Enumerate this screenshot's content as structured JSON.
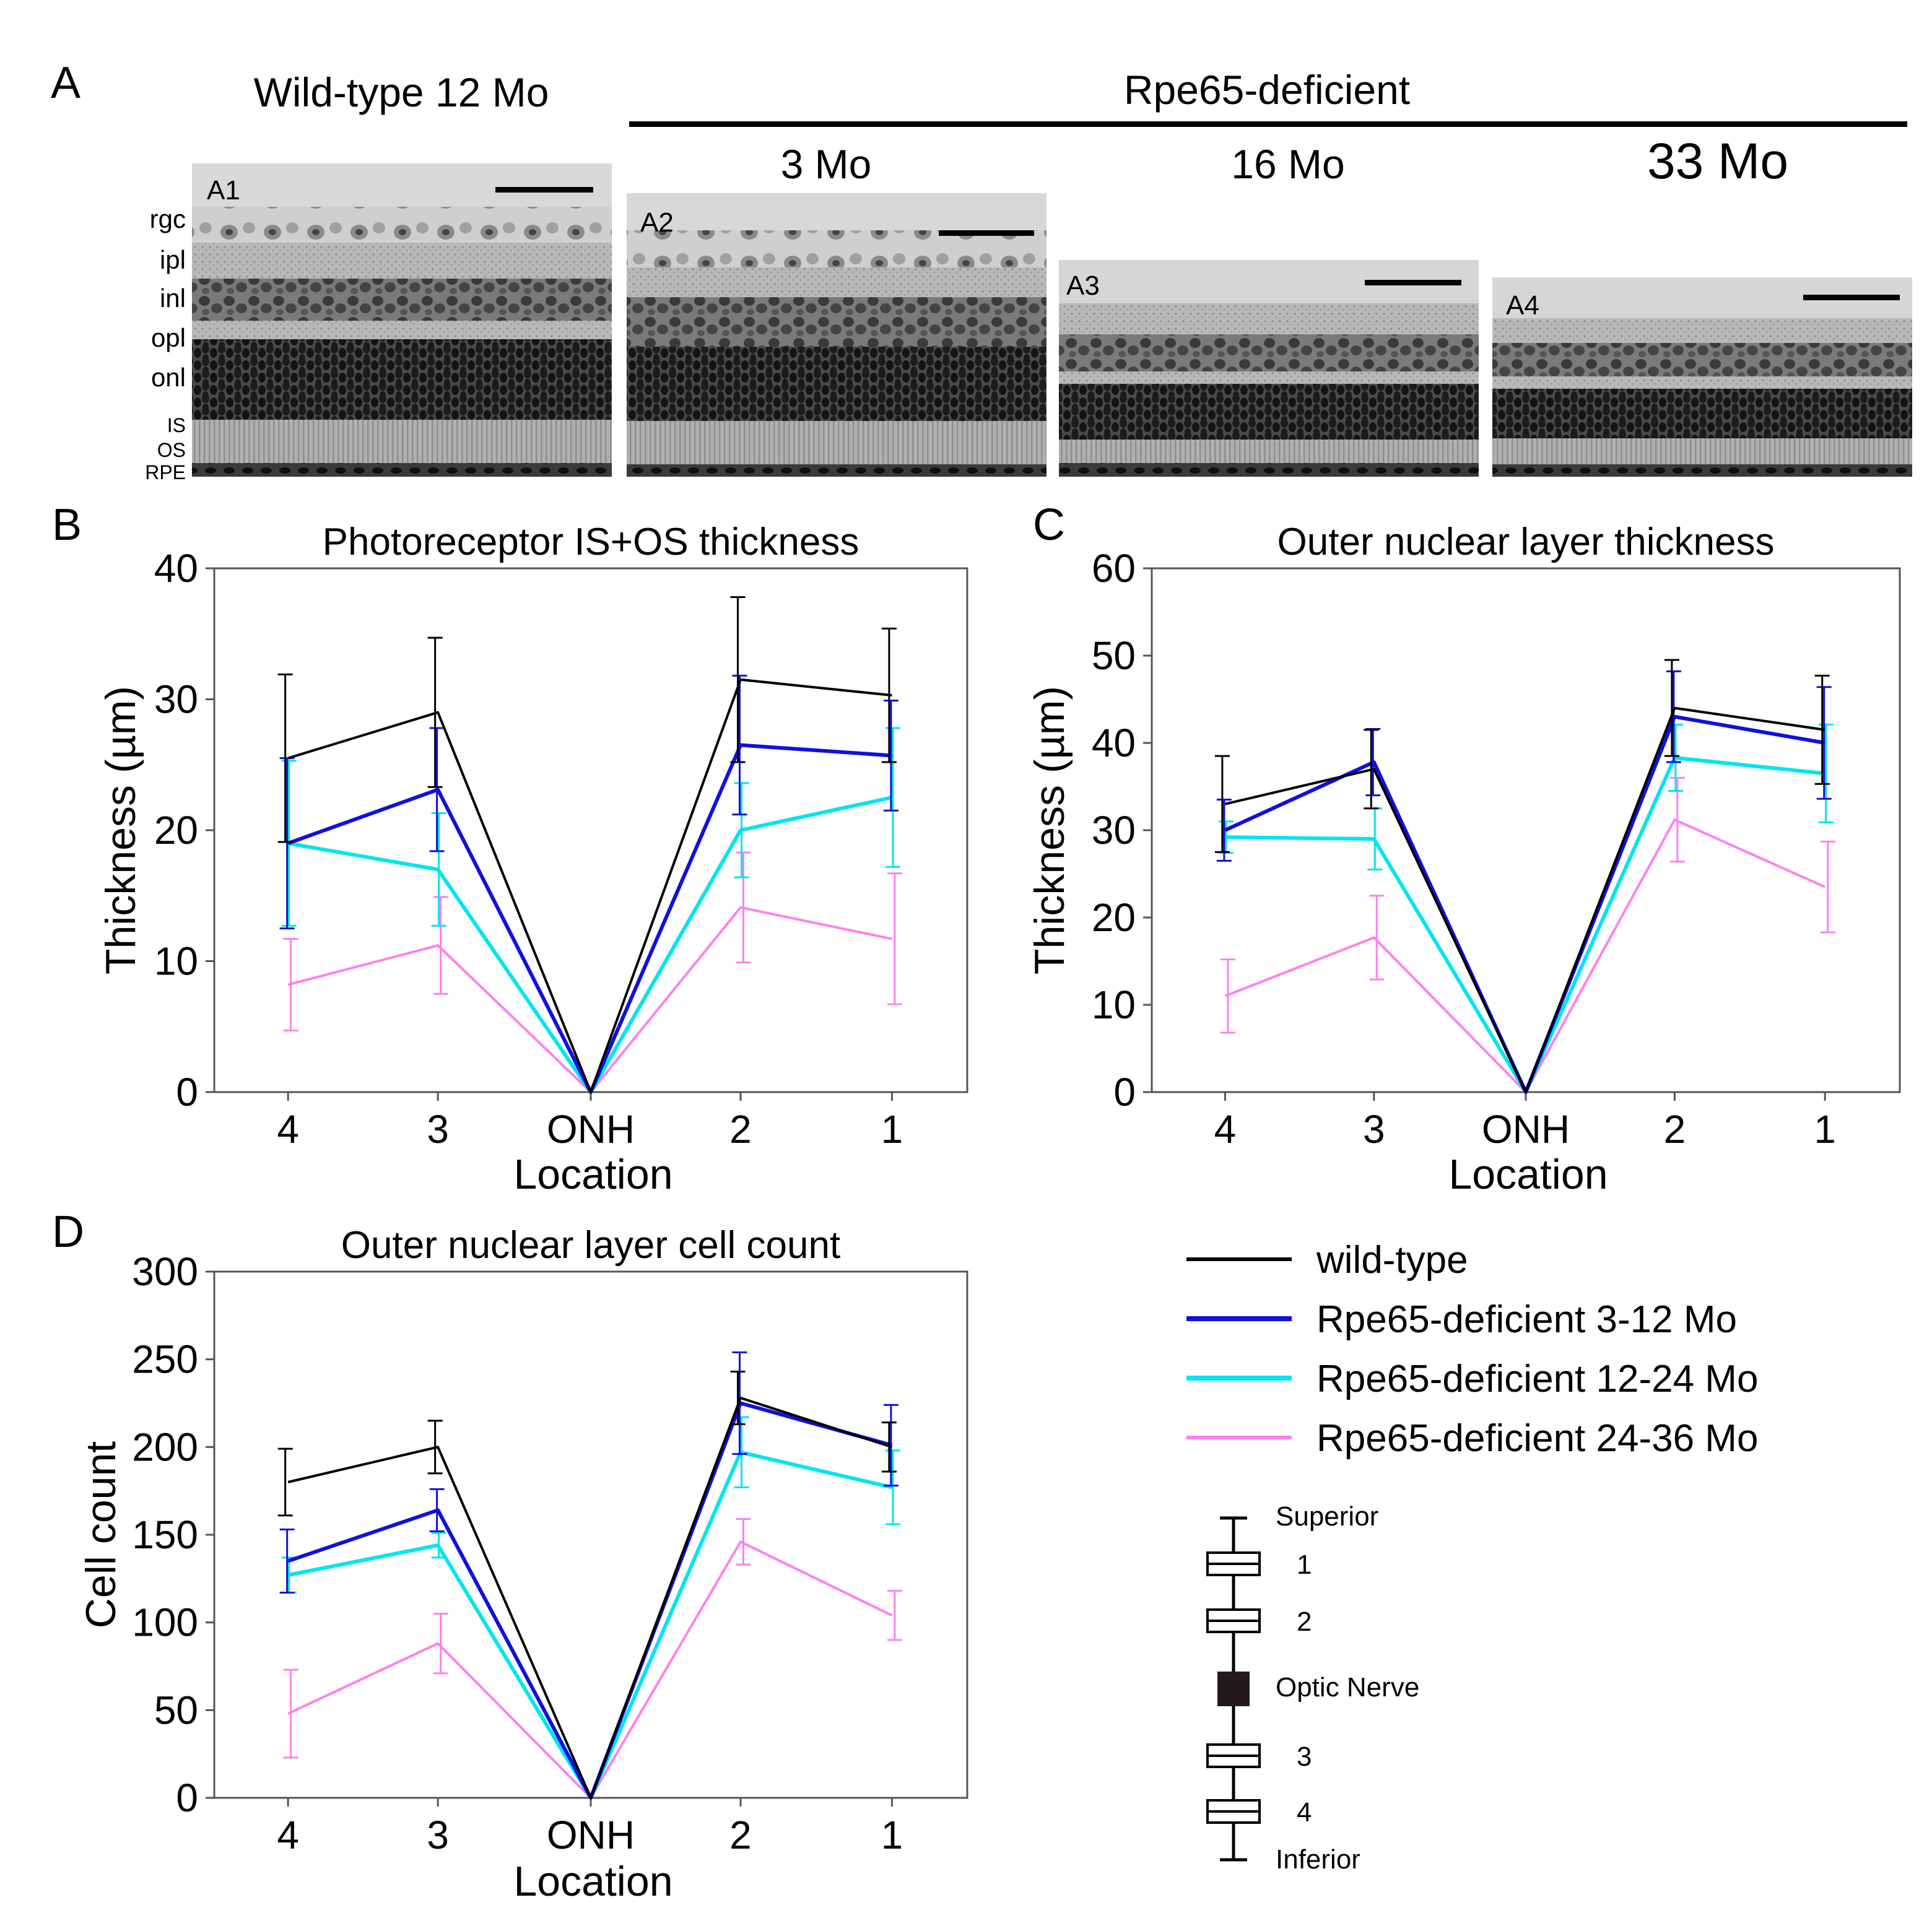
{
  "panel_a": {
    "letter": "A",
    "wild_type_header": "Wild-type 12 Mo",
    "rpe_header": "Rpe65-deficient",
    "ages": [
      "3 Mo",
      "16 Mo",
      "33 Mo"
    ],
    "micrograph_labels": [
      "A1",
      "A2",
      "A3",
      "A4"
    ],
    "layer_labels": [
      "rgc",
      "ipl",
      "inl",
      "opl",
      "onl"
    ],
    "small_layer_labels": [
      "IS",
      "OS",
      "RPE"
    ]
  },
  "series_colors": {
    "wild_type": "#000000",
    "rpe_3_12": "#1010dd",
    "rpe_12_24": "#00e5ee",
    "rpe_24_36": "#ff80ee"
  },
  "legend": {
    "items": [
      {
        "label": "wild-type",
        "color": "#000000"
      },
      {
        "label": "Rpe65-deficient 3-12 Mo",
        "color": "#1010dd"
      },
      {
        "label": "Rpe65-deficient 12-24 Mo",
        "color": "#00e5ee"
      },
      {
        "label": "Rpe65-deficient 24-36 Mo",
        "color": "#ff80ee"
      }
    ]
  },
  "location_diagram": {
    "top": "Superior",
    "bottom": "Inferior",
    "center": "Optic Nerve",
    "boxes": [
      "1",
      "2",
      "3",
      "4"
    ]
  },
  "chart_data": [
    {
      "letter": "B",
      "type": "line",
      "title": "Photoreceptor IS+OS thickness",
      "xlabel": "Location",
      "ylabel": "Thickness (µm)",
      "categories": [
        "4",
        "3",
        "ONH",
        "2",
        "1"
      ],
      "ylim": [
        0,
        40
      ],
      "yticks": [
        0,
        10,
        20,
        30,
        40
      ],
      "grid": false,
      "series": [
        {
          "values": [
            25.5,
            29,
            0,
            31.5,
            30.3
          ],
          "errors": [
            6.4,
            5.7,
            0,
            6.3,
            5.1
          ]
        },
        {
          "values": [
            19,
            23.1,
            0,
            26.5,
            25.7
          ],
          "errors": [
            6.5,
            4.7,
            0,
            5.3,
            4.2
          ]
        },
        {
          "values": [
            19,
            17,
            0,
            20,
            22.5
          ],
          "errors": [
            6.3,
            4.3,
            0,
            3.6,
            5.3
          ]
        },
        {
          "values": [
            8.2,
            11.2,
            0,
            14.1,
            11.7
          ],
          "errors": [
            3.5,
            3.7,
            0,
            4.2,
            5.0
          ]
        }
      ]
    },
    {
      "letter": "C",
      "type": "line",
      "title": "Outer nuclear layer thickness",
      "xlabel": "Location",
      "ylabel": "Thickness (µm)",
      "categories": [
        "4",
        "3",
        "ONH",
        "2",
        "1"
      ],
      "ylim": [
        0,
        60
      ],
      "yticks": [
        0,
        10,
        20,
        30,
        40,
        50,
        60
      ],
      "grid": false,
      "series": [
        {
          "values": [
            33,
            37,
            0,
            44,
            41.5
          ],
          "errors": [
            5.5,
            4.5,
            0,
            5.5,
            6.2
          ]
        },
        {
          "values": [
            30,
            37.8,
            0,
            43,
            40
          ],
          "errors": [
            3.5,
            3.8,
            0,
            5.2,
            6.4
          ]
        },
        {
          "values": [
            29.2,
            29,
            0,
            38.3,
            36.5
          ],
          "errors": [
            1.8,
            3.5,
            0,
            3.8,
            5.6
          ]
        },
        {
          "values": [
            11,
            17.7,
            0,
            31.2,
            23.5
          ],
          "errors": [
            4.2,
            4.8,
            0,
            4.8,
            5.2
          ]
        }
      ]
    },
    {
      "letter": "D",
      "type": "line",
      "title": "Outer nuclear layer cell count",
      "xlabel": "Location",
      "ylabel": "Cell count",
      "categories": [
        "4",
        "3",
        "ONH",
        "2",
        "1"
      ],
      "ylim": [
        0,
        300
      ],
      "yticks": [
        0,
        50,
        100,
        150,
        200,
        250,
        300
      ],
      "grid": false,
      "series": [
        {
          "values": [
            180,
            200,
            0,
            228,
            200
          ],
          "errors": [
            19,
            15,
            0,
            15,
            14
          ]
        },
        {
          "values": [
            135,
            164,
            0,
            225,
            201
          ],
          "errors": [
            18,
            12,
            0,
            29,
            23
          ]
        },
        {
          "values": [
            127,
            144,
            0,
            197,
            177
          ],
          "errors": [
            10,
            7,
            0,
            20,
            21
          ]
        },
        {
          "values": [
            48,
            88,
            0,
            146,
            104
          ],
          "errors": [
            25,
            17,
            0,
            13,
            14
          ]
        }
      ]
    }
  ]
}
